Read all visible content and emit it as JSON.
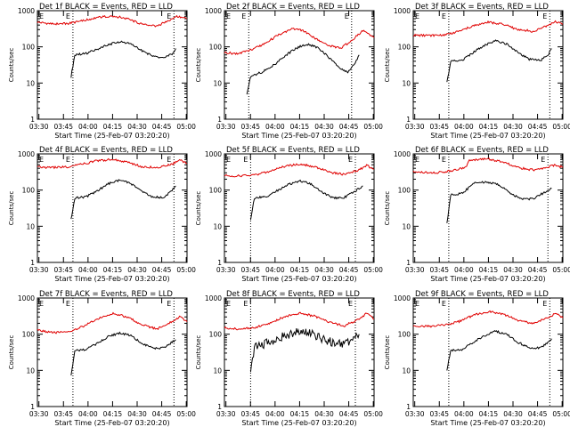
{
  "chart_data": [
    {
      "type": "line",
      "title": "Det 1f BLACK = Events, RED = LLD",
      "xlabel": "Start Time (25-Feb-07 03:20:20)",
      "ylabel": "Counts/sec",
      "y_scale": "log",
      "ylim": [
        1,
        1000
      ],
      "xlim_minutes": [
        20,
        60
      ],
      "x_ticks": [
        "03:30",
        "03:45",
        "04:00",
        "04:15",
        "04:30",
        "04:45",
        "05:00"
      ],
      "y_ticks": [
        "1",
        "10",
        "100",
        "1000"
      ],
      "marker_label": "E",
      "event_lines_minutes": [
        29.5,
        56.5
      ],
      "series": [
        {
          "color": "#000000",
          "x": [
            29,
            30,
            31,
            33,
            36,
            39,
            42,
            45,
            48,
            51,
            53,
            55,
            56.5,
            57
          ],
          "y": [
            15,
            60,
            62,
            66,
            85,
            115,
            140,
            120,
            78,
            55,
            50,
            55,
            70,
            90
          ]
        },
        {
          "color": "#e00000",
          "x": [
            20,
            24,
            28,
            32,
            36,
            40,
            44,
            48,
            52,
            55,
            57,
            60
          ],
          "y": [
            480,
            430,
            440,
            520,
            650,
            720,
            600,
            420,
            380,
            520,
            700,
            600
          ]
        }
      ]
    },
    {
      "type": "line",
      "title": "Det 2f BLACK = Events, RED = LLD",
      "xlabel": "Start Time (25-Feb-07 03:20:20)",
      "ylabel": "Counts/sec",
      "y_scale": "log",
      "ylim": [
        1,
        1000
      ],
      "xlim_minutes": [
        20,
        60
      ],
      "x_ticks": [
        "03:30",
        "03:45",
        "04:00",
        "04:15",
        "04:30",
        "04:45",
        "05:00"
      ],
      "y_ticks": [
        "1",
        "10",
        "100",
        "1000"
      ],
      "marker_label": "E",
      "event_lines_minutes": [
        26.5,
        54
      ],
      "series": [
        {
          "color": "#000000",
          "x": [
            26,
            27,
            30,
            33,
            36,
            39,
            42,
            45,
            48,
            51,
            53,
            55,
            56
          ],
          "y": [
            5,
            15,
            20,
            30,
            55,
            90,
            120,
            95,
            50,
            25,
            20,
            35,
            60
          ]
        },
        {
          "color": "#e00000",
          "x": [
            20,
            23,
            26,
            30,
            34,
            38,
            41,
            44,
            48,
            51,
            54,
            57,
            60
          ],
          "y": [
            70,
            65,
            75,
            110,
            200,
            320,
            280,
            180,
            110,
            90,
            150,
            280,
            180
          ]
        }
      ]
    },
    {
      "type": "line",
      "title": "Det 3f BLACK = Events, RED = LLD",
      "xlabel": "Start Time (25-Feb-07 03:20:20)",
      "ylabel": "Counts/sec",
      "y_scale": "log",
      "ylim": [
        1,
        1000
      ],
      "xlim_minutes": [
        20,
        60
      ],
      "x_ticks": [
        "03:30",
        "03:45",
        "04:00",
        "04:15",
        "04:30",
        "04:45",
        "05:00"
      ],
      "y_ticks": [
        "1",
        "10",
        "100",
        "1000"
      ],
      "marker_label": "E",
      "event_lines_minutes": [
        29.5,
        56.5
      ],
      "series": [
        {
          "color": "#000000",
          "x": [
            29,
            30,
            33,
            36,
            39,
            42,
            45,
            48,
            51,
            54,
            56,
            57
          ],
          "y": [
            10,
            40,
            42,
            70,
            110,
            150,
            120,
            70,
            45,
            42,
            60,
            90
          ]
        },
        {
          "color": "#e00000",
          "x": [
            20,
            24,
            28,
            32,
            36,
            40,
            44,
            48,
            52,
            56,
            58,
            60
          ],
          "y": [
            210,
            205,
            215,
            260,
            380,
            480,
            420,
            300,
            270,
            380,
            500,
            420
          ]
        }
      ]
    },
    {
      "type": "line",
      "title": "Det 4f BLACK = Events, RED = LLD",
      "xlabel": "Start Time (25-Feb-07 03:20:20)",
      "ylabel": "Counts/sec",
      "y_scale": "log",
      "ylim": [
        1,
        1000
      ],
      "xlim_minutes": [
        20,
        60
      ],
      "x_ticks": [
        "03:30",
        "03:45",
        "04:00",
        "04:15",
        "04:30",
        "04:45",
        "05:00"
      ],
      "y_ticks": [
        "1",
        "10",
        "100",
        "1000"
      ],
      "marker_label": "E",
      "event_lines_minutes": [
        29.5,
        56.5
      ],
      "series": [
        {
          "color": "#000000",
          "x": [
            29,
            30,
            33,
            36,
            39,
            42,
            45,
            48,
            51,
            54,
            56,
            57
          ],
          "y": [
            15,
            60,
            65,
            95,
            150,
            190,
            150,
            90,
            62,
            65,
            100,
            130
          ]
        },
        {
          "color": "#e00000",
          "x": [
            20,
            24,
            28,
            32,
            36,
            40,
            44,
            48,
            52,
            56,
            58,
            60
          ],
          "y": [
            430,
            420,
            440,
            520,
            650,
            700,
            600,
            440,
            420,
            520,
            700,
            550
          ]
        }
      ]
    },
    {
      "type": "line",
      "title": "Det 5f BLACK = Events, RED = LLD",
      "xlabel": "Start Time (25-Feb-07 03:20:20)",
      "ylabel": "Counts/sec",
      "y_scale": "log",
      "ylim": [
        1,
        1000
      ],
      "xlim_minutes": [
        20,
        60
      ],
      "x_ticks": [
        "03:30",
        "03:45",
        "04:00",
        "04:15",
        "04:30",
        "04:45",
        "05:00"
      ],
      "y_ticks": [
        "1",
        "10",
        "100",
        "1000"
      ],
      "marker_label": "E",
      "event_lines_minutes": [
        27,
        55
      ],
      "series": [
        {
          "color": "#000000",
          "x": [
            27,
            28,
            31,
            34,
            37,
            40,
            43,
            46,
            49,
            52,
            55,
            57
          ],
          "y": [
            15,
            60,
            65,
            95,
            140,
            180,
            150,
            90,
            60,
            62,
            95,
            130
          ]
        },
        {
          "color": "#e00000",
          "x": [
            20,
            24,
            28,
            32,
            36,
            40,
            44,
            48,
            52,
            56,
            58,
            60
          ],
          "y": [
            250,
            245,
            260,
            320,
            450,
            520,
            450,
            310,
            270,
            360,
            480,
            380
          ]
        }
      ]
    },
    {
      "type": "line",
      "title": "Det 6f BLACK = Events, RED = LLD",
      "xlabel": "Start Time (25-Feb-07 03:20:20)",
      "ylabel": "Counts/sec",
      "y_scale": "log",
      "ylim": [
        1,
        1000
      ],
      "xlim_minutes": [
        20,
        60
      ],
      "x_ticks": [
        "03:30",
        "03:45",
        "04:00",
        "04:15",
        "04:30",
        "04:45",
        "05:00"
      ],
      "y_ticks": [
        "1",
        "10",
        "100",
        "1000"
      ],
      "marker_label": "E",
      "event_lines_minutes": [
        29.5,
        56
      ],
      "series": [
        {
          "color": "#000000",
          "x": [
            29,
            30,
            33,
            35,
            36,
            37,
            40,
            43,
            46,
            49,
            52,
            55,
            57
          ],
          "y": [
            12,
            75,
            80,
            120,
            150,
            160,
            165,
            140,
            80,
            55,
            58,
            85,
            110
          ]
        },
        {
          "color": "#e00000",
          "x": [
            20,
            24,
            28,
            32,
            34,
            35,
            37,
            40,
            44,
            48,
            52,
            56,
            58,
            60
          ],
          "y": [
            320,
            300,
            310,
            380,
            430,
            650,
            700,
            720,
            600,
            420,
            360,
            430,
            500,
            420
          ]
        }
      ]
    },
    {
      "type": "line",
      "title": "Det 7f BLACK = Events, RED = LLD",
      "xlabel": "Start Time (25-Feb-07 03:20:20)",
      "ylabel": "Counts/sec",
      "y_scale": "log",
      "ylim": [
        1,
        1000
      ],
      "xlim_minutes": [
        20,
        60
      ],
      "x_ticks": [
        "03:30",
        "03:45",
        "04:00",
        "04:15",
        "04:30",
        "04:45",
        "05:00"
      ],
      "y_ticks": [
        "1",
        "10",
        "100",
        "1000"
      ],
      "marker_label": "E",
      "event_lines_minutes": [
        29.5,
        56.5
      ],
      "series": [
        {
          "color": "#000000",
          "x": [
            29,
            30,
            33,
            36,
            39,
            42,
            45,
            48,
            51,
            54,
            56,
            57
          ],
          "y": [
            7,
            35,
            38,
            55,
            85,
            110,
            90,
            55,
            40,
            42,
            60,
            70
          ]
        },
        {
          "color": "#e00000",
          "x": [
            20,
            24,
            28,
            32,
            36,
            40,
            44,
            48,
            52,
            56,
            58,
            60
          ],
          "y": [
            130,
            110,
            115,
            160,
            260,
            380,
            300,
            180,
            140,
            220,
            300,
            220
          ]
        }
      ]
    },
    {
      "type": "line",
      "title": "Det 8f BLACK = Events, RED = LLD",
      "xlabel": "Start Time (25-Feb-07 03:20:20)",
      "ylabel": "Counts/sec",
      "y_scale": "log",
      "ylim": [
        1,
        1000
      ],
      "xlim_minutes": [
        20,
        60
      ],
      "x_ticks": [
        "03:30",
        "03:45",
        "04:00",
        "04:15",
        "04:30",
        "04:45",
        "05:00"
      ],
      "y_ticks": [
        "1",
        "10",
        "100",
        "1000"
      ],
      "marker_label": "E",
      "event_lines_minutes": [
        27,
        55
      ],
      "series": [
        {
          "color": "#000000",
          "x": [
            27,
            28,
            31,
            34,
            37,
            40,
            43,
            46,
            49,
            52,
            55,
            56
          ],
          "y": [
            8,
            45,
            55,
            75,
            95,
            120,
            105,
            75,
            60,
            55,
            80,
            100
          ]
        },
        {
          "color": "#e00000",
          "x": [
            20,
            24,
            28,
            32,
            36,
            40,
            44,
            48,
            52,
            56,
            58,
            60
          ],
          "y": [
            150,
            140,
            150,
            200,
            300,
            380,
            320,
            210,
            170,
            260,
            380,
            260
          ]
        }
      ]
    },
    {
      "type": "line",
      "title": "Det 9f BLACK = Events, RED = LLD",
      "xlabel": "Start Time (25-Feb-07 03:20:20)",
      "ylabel": "Counts/sec",
      "y_scale": "log",
      "ylim": [
        1,
        1000
      ],
      "xlim_minutes": [
        20,
        60
      ],
      "x_ticks": [
        "03:30",
        "03:45",
        "04:00",
        "04:15",
        "04:30",
        "04:45",
        "05:00"
      ],
      "y_ticks": [
        "1",
        "10",
        "100",
        "1000"
      ],
      "marker_label": "E",
      "event_lines_minutes": [
        29.5,
        56.5
      ],
      "series": [
        {
          "color": "#000000",
          "x": [
            29,
            30,
            33,
            36,
            39,
            42,
            45,
            48,
            51,
            54,
            56,
            57
          ],
          "y": [
            10,
            35,
            38,
            60,
            90,
            120,
            100,
            60,
            42,
            42,
            60,
            75
          ]
        },
        {
          "color": "#e00000",
          "x": [
            20,
            24,
            28,
            32,
            36,
            40,
            44,
            48,
            52,
            56,
            58,
            60
          ],
          "y": [
            170,
            165,
            175,
            220,
            330,
            420,
            360,
            240,
            200,
            280,
            380,
            280
          ]
        }
      ]
    }
  ]
}
